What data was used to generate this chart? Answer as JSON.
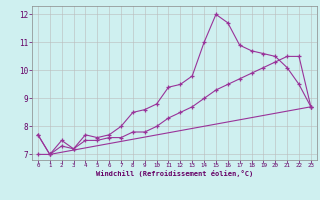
{
  "xlabel": "Windchill (Refroidissement éolien,°C)",
  "bg_color": "#cff0f0",
  "grid_color": "#bbbbbb",
  "line_color": "#993399",
  "xlim": [
    -0.5,
    23.5
  ],
  "ylim": [
    6.8,
    12.3
  ],
  "xticks": [
    0,
    1,
    2,
    3,
    4,
    5,
    6,
    7,
    8,
    9,
    10,
    11,
    12,
    13,
    14,
    15,
    16,
    17,
    18,
    19,
    20,
    21,
    22,
    23
  ],
  "yticks": [
    7,
    8,
    9,
    10,
    11,
    12
  ],
  "series1_x": [
    0,
    1,
    2,
    3,
    4,
    5,
    6,
    7,
    8,
    9,
    10,
    11,
    12,
    13,
    14,
    15,
    16,
    17,
    18,
    19,
    20,
    21,
    22,
    23
  ],
  "series1_y": [
    7.7,
    7.0,
    7.5,
    7.2,
    7.7,
    7.6,
    7.7,
    8.0,
    8.5,
    8.6,
    8.8,
    9.4,
    9.5,
    9.8,
    11.0,
    12.0,
    11.7,
    10.9,
    10.7,
    10.6,
    10.5,
    10.1,
    9.5,
    8.7
  ],
  "series2_x": [
    0,
    1,
    23
  ],
  "series2_y": [
    7.0,
    7.0,
    8.7
  ],
  "series3_x": [
    0,
    1,
    2,
    3,
    4,
    5,
    6,
    7,
    8,
    9,
    10,
    11,
    12,
    13,
    14,
    15,
    16,
    17,
    18,
    19,
    20,
    21,
    22,
    23
  ],
  "series3_y": [
    7.7,
    7.0,
    7.3,
    7.2,
    7.5,
    7.5,
    7.6,
    7.6,
    7.8,
    7.8,
    8.0,
    8.3,
    8.5,
    8.7,
    9.0,
    9.3,
    9.5,
    9.7,
    9.9,
    10.1,
    10.3,
    10.5,
    10.5,
    8.7
  ]
}
